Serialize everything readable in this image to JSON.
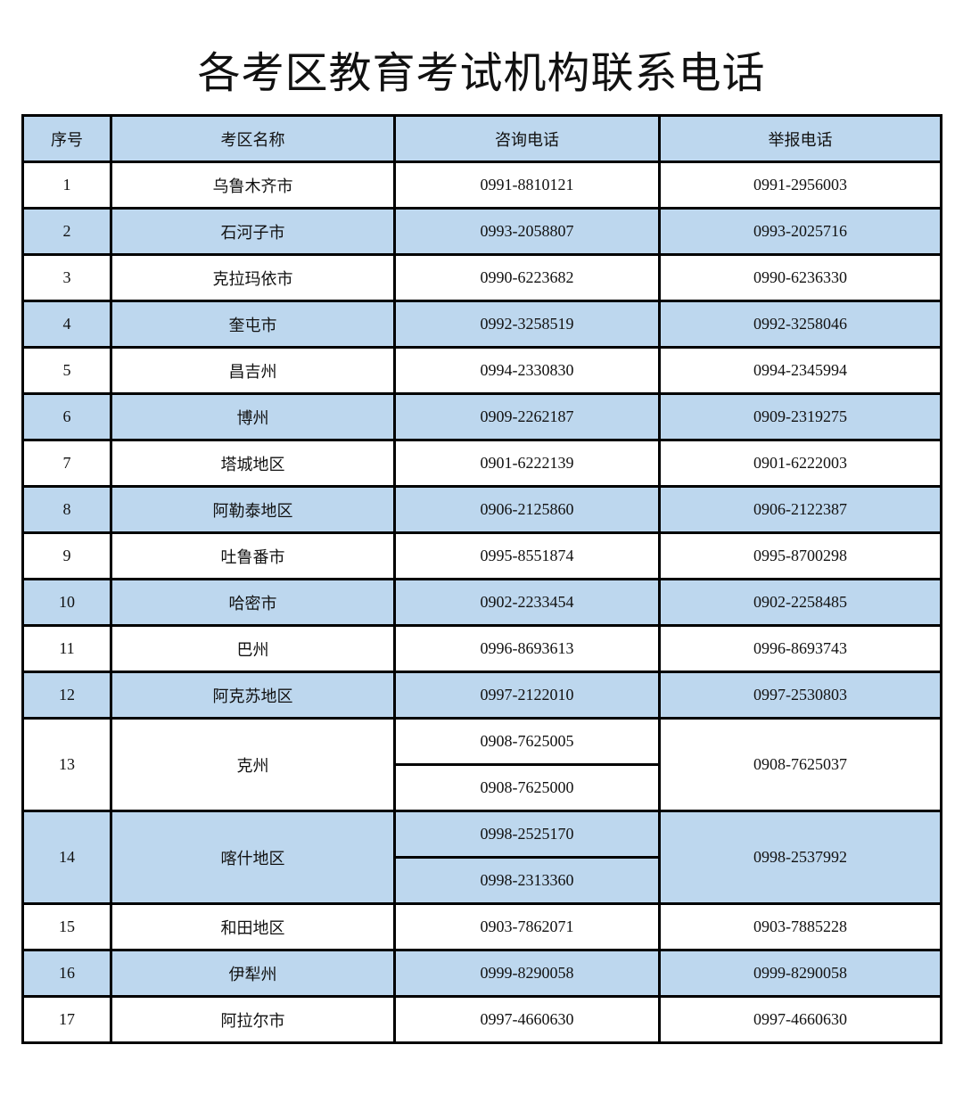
{
  "title": "各考区教育考试机构联系电话",
  "table": {
    "headers": [
      "序号",
      "考区名称",
      "咨询电话",
      "举报电话"
    ],
    "rows": [
      {
        "no": "1",
        "name": "乌鲁木齐市",
        "consult": [
          "0991-8810121"
        ],
        "report": "0991-2956003"
      },
      {
        "no": "2",
        "name": "石河子市",
        "consult": [
          "0993-2058807"
        ],
        "report": "0993-2025716"
      },
      {
        "no": "3",
        "name": "克拉玛依市",
        "consult": [
          "0990-6223682"
        ],
        "report": "0990-6236330"
      },
      {
        "no": "4",
        "name": "奎屯市",
        "consult": [
          "0992-3258519"
        ],
        "report": "0992-3258046"
      },
      {
        "no": "5",
        "name": "昌吉州",
        "consult": [
          "0994-2330830"
        ],
        "report": "0994-2345994"
      },
      {
        "no": "6",
        "name": "博州",
        "consult": [
          "0909-2262187"
        ],
        "report": "0909-2319275"
      },
      {
        "no": "7",
        "name": "塔城地区",
        "consult": [
          "0901-6222139"
        ],
        "report": "0901-6222003"
      },
      {
        "no": "8",
        "name": "阿勒泰地区",
        "consult": [
          "0906-2125860"
        ],
        "report": "0906-2122387"
      },
      {
        "no": "9",
        "name": "吐鲁番市",
        "consult": [
          "0995-8551874"
        ],
        "report": "0995-8700298"
      },
      {
        "no": "10",
        "name": "哈密市",
        "consult": [
          "0902-2233454"
        ],
        "report": "0902-2258485"
      },
      {
        "no": "11",
        "name": "巴州",
        "consult": [
          "0996-8693613"
        ],
        "report": "0996-8693743"
      },
      {
        "no": "12",
        "name": "阿克苏地区",
        "consult": [
          "0997-2122010"
        ],
        "report": "0997-2530803"
      },
      {
        "no": "13",
        "name": "克州",
        "consult": [
          "0908-7625005",
          "0908-7625000"
        ],
        "report": "0908-7625037"
      },
      {
        "no": "14",
        "name": "喀什地区",
        "consult": [
          "0998-2525170",
          "0998-2313360"
        ],
        "report": "0998-2537992"
      },
      {
        "no": "15",
        "name": "和田地区",
        "consult": [
          "0903-7862071"
        ],
        "report": "0903-7885228"
      },
      {
        "no": "16",
        "name": "伊犁州",
        "consult": [
          "0999-8290058"
        ],
        "report": "0999-8290058"
      },
      {
        "no": "17",
        "name": "阿拉尔市",
        "consult": [
          "0997-4660630"
        ],
        "report": "0997-4660630"
      }
    ]
  },
  "colors": {
    "row_highlight": "#bdd7ee",
    "border": "#000000"
  }
}
